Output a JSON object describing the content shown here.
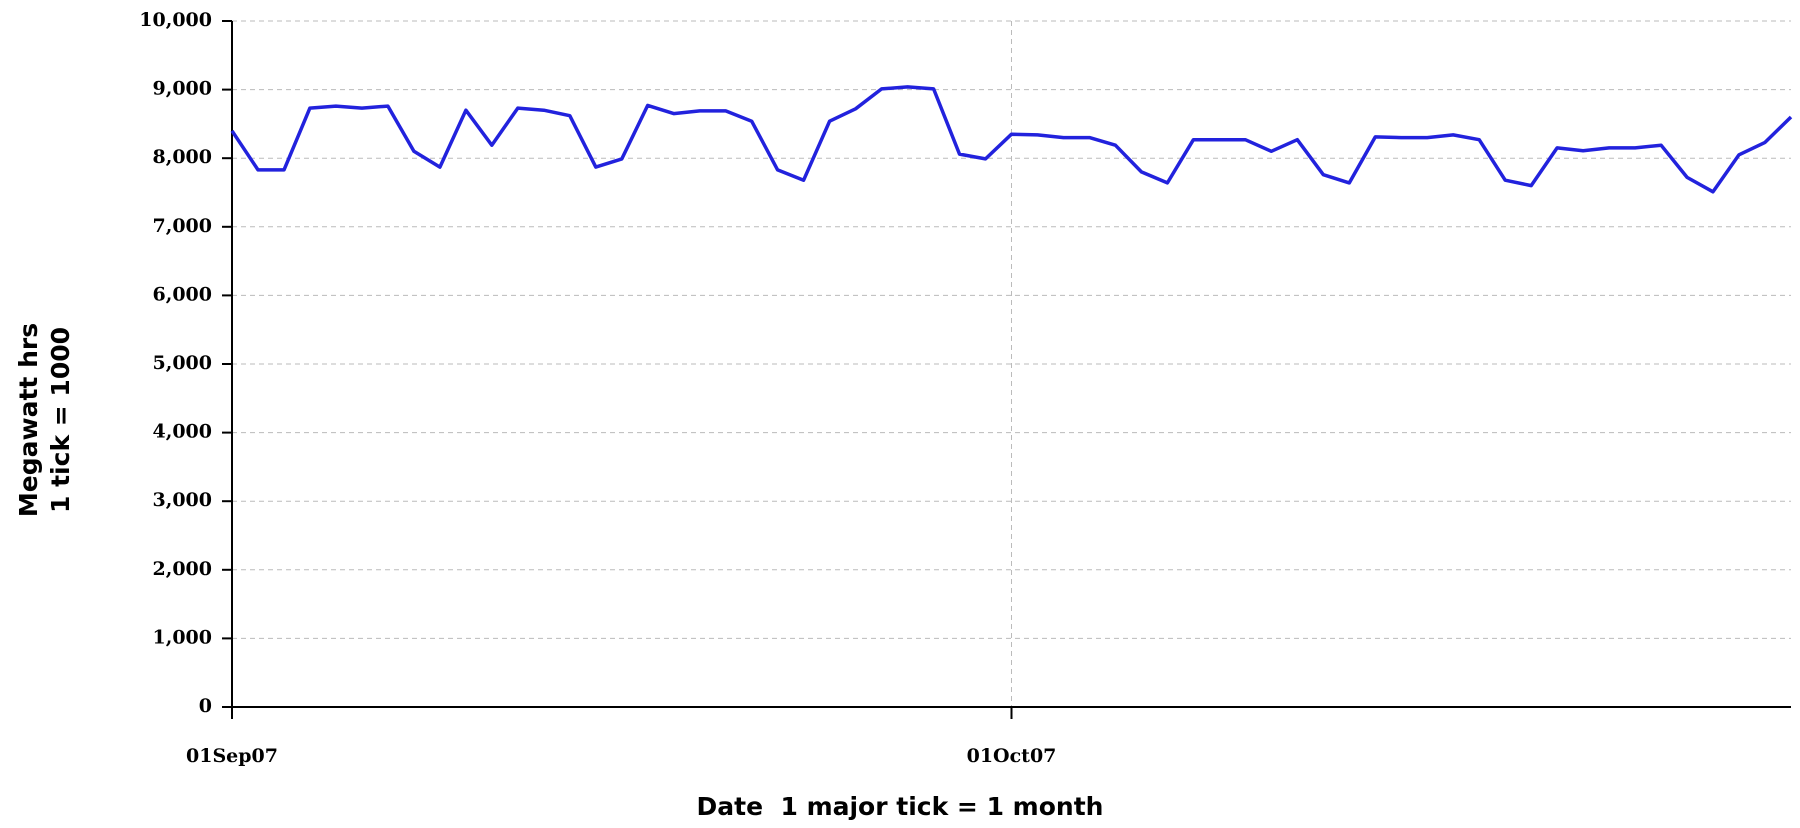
{
  "chart_data": {
    "type": "line",
    "y_label": [
      "Megawatt hrs",
      "1 tick = 1000"
    ],
    "x_label": "Date  1 major tick = 1 month",
    "x": [
      "2007-09-01",
      "2007-09-02",
      "2007-09-03",
      "2007-09-04",
      "2007-09-05",
      "2007-09-06",
      "2007-09-07",
      "2007-09-08",
      "2007-09-09",
      "2007-09-10",
      "2007-09-11",
      "2007-09-12",
      "2007-09-13",
      "2007-09-14",
      "2007-09-15",
      "2007-09-16",
      "2007-09-17",
      "2007-09-18",
      "2007-09-19",
      "2007-09-20",
      "2007-09-21",
      "2007-09-22",
      "2007-09-23",
      "2007-09-24",
      "2007-09-25",
      "2007-09-26",
      "2007-09-27",
      "2007-09-28",
      "2007-09-29",
      "2007-09-30",
      "2007-10-01",
      "2007-10-02",
      "2007-10-03",
      "2007-10-04",
      "2007-10-05",
      "2007-10-06",
      "2007-10-07",
      "2007-10-08",
      "2007-10-09",
      "2007-10-10",
      "2007-10-11",
      "2007-10-12",
      "2007-10-13",
      "2007-10-14",
      "2007-10-15",
      "2007-10-16",
      "2007-10-17",
      "2007-10-18",
      "2007-10-19",
      "2007-10-20",
      "2007-10-21",
      "2007-10-22",
      "2007-10-23",
      "2007-10-24",
      "2007-10-25",
      "2007-10-26",
      "2007-10-27",
      "2007-10-28",
      "2007-10-29",
      "2007-10-30",
      "2007-10-31"
    ],
    "series": [
      {
        "color": "#2222dd",
        "values": [
          8400,
          7830,
          7830,
          8730,
          8760,
          8730,
          8760,
          8100,
          7870,
          8700,
          8190,
          8730,
          8700,
          8620,
          7870,
          7990,
          8770,
          8650,
          8690,
          8690,
          8540,
          7830,
          7680,
          8540,
          8720,
          9010,
          9040,
          9010,
          8060,
          7990,
          8350,
          8340,
          8300,
          8300,
          8190,
          7800,
          7640,
          8270,
          8270,
          8270,
          8100,
          8270,
          7760,
          7640,
          8310,
          8300,
          8300,
          8340,
          8270,
          7680,
          7600,
          8150,
          8110,
          8150,
          8150,
          8190,
          7720,
          7510,
          8050,
          8230,
          8600
        ]
      }
    ],
    "xlim": [
      "2007-09-01",
      "2007-10-31"
    ],
    "xticks": [
      {
        "value": "2007-09-01",
        "label": "01Sep07"
      },
      {
        "value": "2007-10-01",
        "label": "01Oct07"
      }
    ],
    "ylim": [
      0,
      10000
    ],
    "yticks": [
      0,
      {
        "value": 1000,
        "label": "1,000"
      },
      {
        "value": 2000,
        "label": "2,000"
      },
      {
        "value": 3000,
        "label": "3,000"
      },
      {
        "value": 4000,
        "label": "4,000"
      },
      {
        "value": 5000,
        "label": "5,000"
      },
      {
        "value": 6000,
        "label": "6,000"
      },
      {
        "value": 7000,
        "label": "7,000"
      },
      {
        "value": 8000,
        "label": "8,000"
      },
      {
        "value": 9000,
        "label": "9,000"
      },
      {
        "value": 10000,
        "label": "10,000"
      }
    ],
    "grid": true
  }
}
